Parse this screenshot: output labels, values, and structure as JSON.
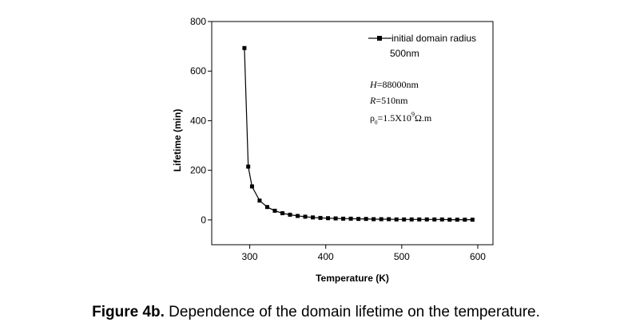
{
  "chart_data": {
    "type": "line",
    "xlabel": "Temperature (K)",
    "ylabel": "Lifetime (min)",
    "xlim": [
      250,
      620
    ],
    "ylim": [
      -100,
      800
    ],
    "xticks": [
      300,
      400,
      500,
      600
    ],
    "yticks": [
      0,
      200,
      400,
      600,
      800
    ],
    "grid": false,
    "legend_position": "top-right",
    "series": [
      {
        "name": "initial domain radius 500nm",
        "marker": "square",
        "color": "#000000",
        "x": [
          293,
          298,
          303,
          313,
          323,
          333,
          343,
          353,
          363,
          373,
          383,
          393,
          403,
          413,
          423,
          433,
          443,
          453,
          463,
          473,
          483,
          493,
          503,
          513,
          523,
          533,
          543,
          553,
          563,
          573,
          583,
          593
        ],
        "y": [
          693,
          215,
          135,
          78,
          52,
          37,
          27,
          21,
          16,
          13,
          10,
          8,
          7,
          6,
          5,
          5,
          4,
          4,
          3,
          3,
          3,
          2,
          2,
          2,
          2,
          2,
          2,
          2,
          1,
          1,
          1,
          1
        ]
      }
    ],
    "legend": {
      "line1": "initial domain radius",
      "line2": "500nm"
    },
    "annotations": {
      "h": {
        "sym": "H",
        "val": "=88000nm"
      },
      "r": {
        "sym": "R",
        "val": "=510nm"
      },
      "rho": {
        "sym": "ρ",
        "sub": "0",
        "mid": "=1.5X10",
        "sup": "9",
        "unit": "Ω.m"
      }
    }
  },
  "caption": {
    "label": "Figure 4b.",
    "text": " Dependence of the domain lifetime on the temperature."
  }
}
